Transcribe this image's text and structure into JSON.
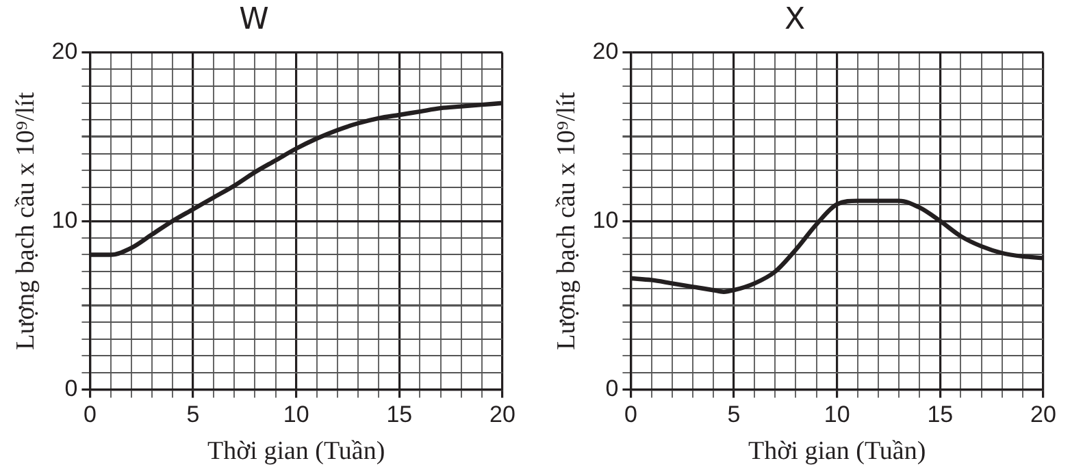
{
  "chart_data": [
    {
      "type": "line",
      "title": "W",
      "xlabel": "Thời gian (Tuần)",
      "ylabel": "Lượng bạch cầu x 10⁹/lít",
      "xlim": [
        0,
        20
      ],
      "ylim": [
        0,
        20
      ],
      "xticks": [
        0,
        {
          "value": 1,
          "label": null
        },
        {
          "value": 2,
          "label": null
        },
        {
          "value": 3,
          "label": null
        },
        {
          "value": 4,
          "label": null
        },
        5,
        {
          "value": 6,
          "label": null
        },
        {
          "value": 7,
          "label": null
        },
        {
          "value": 8,
          "label": null
        },
        {
          "value": 9,
          "label": null
        },
        10,
        {
          "value": 11,
          "label": null
        },
        {
          "value": 12,
          "label": null
        },
        {
          "value": 13,
          "label": null
        },
        {
          "value": 14,
          "label": null
        },
        15,
        {
          "value": 16,
          "label": null
        },
        {
          "value": 17,
          "label": null
        },
        {
          "value": 18,
          "label": null
        },
        {
          "value": 19,
          "label": null
        },
        20
      ],
      "yticks": [
        0,
        {
          "value": 1,
          "label": null
        },
        {
          "value": 2,
          "label": null
        },
        {
          "value": 3,
          "label": null
        },
        {
          "value": 4,
          "label": null
        },
        {
          "value": 5,
          "label": null
        },
        {
          "value": 6,
          "label": null
        },
        {
          "value": 7,
          "label": null
        },
        {
          "value": 8,
          "label": null
        },
        {
          "value": 9,
          "label": null
        },
        10,
        {
          "value": 11,
          "label": null
        },
        {
          "value": 12,
          "label": null
        },
        {
          "value": 13,
          "label": null
        },
        {
          "value": 14,
          "label": null
        },
        {
          "value": 15,
          "label": null
        },
        {
          "value": 16,
          "label": null
        },
        {
          "value": 17,
          "label": null
        },
        {
          "value": 18,
          "label": null
        },
        {
          "value": 19,
          "label": null
        },
        20
      ],
      "grid": true,
      "legend": false,
      "marker": "none",
      "line_style": "solid",
      "x": [
        0,
        1,
        2,
        3,
        4,
        5,
        6,
        7,
        8,
        9,
        10,
        11,
        12,
        13,
        14,
        15,
        16,
        17,
        18,
        19,
        20
      ],
      "series": [
        {
          "color": "#231f20",
          "values": [
            8,
            8,
            8.4,
            9.2,
            10,
            10.7,
            11.4,
            12.1,
            12.9,
            13.6,
            14.3,
            14.9,
            15.4,
            15.8,
            16.1,
            16.3,
            16.5,
            16.7,
            16.8,
            16.9,
            17
          ]
        }
      ]
    },
    {
      "type": "line",
      "title": "X",
      "xlabel": "Thời gian (Tuần)",
      "ylabel": "Lượng bạch cầu x 10⁹/lít",
      "xlim": [
        0,
        20
      ],
      "ylim": [
        0,
        20
      ],
      "xticks": [
        0,
        {
          "value": 1,
          "label": null
        },
        {
          "value": 2,
          "label": null
        },
        {
          "value": 3,
          "label": null
        },
        {
          "value": 4,
          "label": null
        },
        5,
        {
          "value": 6,
          "label": null
        },
        {
          "value": 7,
          "label": null
        },
        {
          "value": 8,
          "label": null
        },
        {
          "value": 9,
          "label": null
        },
        10,
        {
          "value": 11,
          "label": null
        },
        {
          "value": 12,
          "label": null
        },
        {
          "value": 13,
          "label": null
        },
        {
          "value": 14,
          "label": null
        },
        15,
        {
          "value": 16,
          "label": null
        },
        {
          "value": 17,
          "label": null
        },
        {
          "value": 18,
          "label": null
        },
        {
          "value": 19,
          "label": null
        },
        20
      ],
      "yticks": [
        0,
        {
          "value": 1,
          "label": null
        },
        {
          "value": 2,
          "label": null
        },
        {
          "value": 3,
          "label": null
        },
        {
          "value": 4,
          "label": null
        },
        {
          "value": 5,
          "label": null
        },
        {
          "value": 6,
          "label": null
        },
        {
          "value": 7,
          "label": null
        },
        {
          "value": 8,
          "label": null
        },
        {
          "value": 9,
          "label": null
        },
        10,
        {
          "value": 11,
          "label": null
        },
        {
          "value": 12,
          "label": null
        },
        {
          "value": 13,
          "label": null
        },
        {
          "value": 14,
          "label": null
        },
        {
          "value": 15,
          "label": null
        },
        {
          "value": 16,
          "label": null
        },
        {
          "value": 17,
          "label": null
        },
        {
          "value": 18,
          "label": null
        },
        {
          "value": 19,
          "label": null
        },
        20
      ],
      "grid": true,
      "legend": false,
      "marker": "none",
      "line_style": "solid",
      "x": [
        0,
        1,
        2,
        3,
        4,
        4.5,
        5,
        6,
        7,
        8,
        9,
        10,
        11,
        12,
        13,
        14,
        15,
        16,
        17,
        18,
        19,
        20
      ],
      "series": [
        {
          "color": "#231f20",
          "values": [
            6.6,
            6.5,
            6.3,
            6.1,
            5.9,
            5.8,
            5.9,
            6.3,
            7,
            8.3,
            9.8,
            11,
            11.2,
            11.2,
            11.2,
            10.8,
            10,
            9.1,
            8.5,
            8.1,
            7.9,
            7.8
          ]
        }
      ]
    }
  ]
}
